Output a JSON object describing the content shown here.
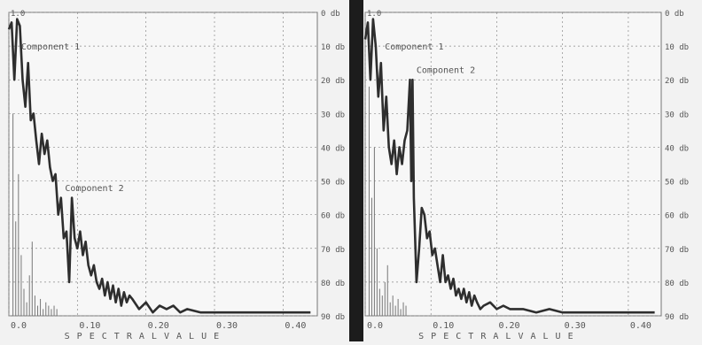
{
  "chart_data": [
    {
      "type": "line",
      "corner_label": "1.0",
      "xlabel": "S P E C T R A L   V A L U E",
      "x_ticks": [
        0.0,
        0.1,
        0.2,
        0.3,
        0.4
      ],
      "x_tick_labels": [
        "0.0",
        "0.10",
        "0.20",
        "0.30",
        "0.40"
      ],
      "xlim": [
        0,
        0.45
      ],
      "ylim_db": [
        0,
        90
      ],
      "y_tick_labels": [
        "0 db",
        "10 db",
        "20 db",
        "30 db",
        "40 db",
        "50 db",
        "60 db",
        "70 db",
        "80 db",
        "90 db"
      ],
      "grid": true,
      "annotations": [
        {
          "text": "Component 1",
          "x": 0.018,
          "y": 11
        },
        {
          "text": "Component 2",
          "x": 0.082,
          "y": 53
        }
      ],
      "series": [
        {
          "x": [
            0.0,
            0.004,
            0.008,
            0.012,
            0.016,
            0.02,
            0.024,
            0.028,
            0.032,
            0.036,
            0.04,
            0.044,
            0.048,
            0.052,
            0.056,
            0.06,
            0.064,
            0.068,
            0.072,
            0.076,
            0.08,
            0.084,
            0.088,
            0.092,
            0.096,
            0.1,
            0.104,
            0.108,
            0.112,
            0.116,
            0.12,
            0.124,
            0.128,
            0.132,
            0.136,
            0.14,
            0.144,
            0.148,
            0.152,
            0.156,
            0.16,
            0.164,
            0.168,
            0.172,
            0.176,
            0.18,
            0.19,
            0.2,
            0.21,
            0.22,
            0.23,
            0.24,
            0.25,
            0.26,
            0.28,
            0.3,
            0.33,
            0.36,
            0.4,
            0.44
          ],
          "y": [
            5,
            3,
            20,
            2,
            4,
            20,
            28,
            15,
            32,
            30,
            38,
            45,
            36,
            42,
            38,
            46,
            50,
            48,
            60,
            55,
            67,
            65,
            80,
            55,
            67,
            70,
            65,
            72,
            68,
            75,
            78,
            75,
            80,
            82,
            79,
            84,
            80,
            85,
            81,
            86,
            82,
            87,
            83,
            86,
            84,
            85,
            88,
            86,
            89,
            87,
            88,
            87,
            89,
            88,
            89,
            89,
            89,
            89,
            89,
            89
          ]
        }
      ],
      "bars": {
        "x": [
          0.006,
          0.01,
          0.014,
          0.018,
          0.022,
          0.026,
          0.03,
          0.034,
          0.038,
          0.042,
          0.046,
          0.05,
          0.054,
          0.058,
          0.062,
          0.066,
          0.07
        ],
        "top": [
          30,
          62,
          48,
          72,
          82,
          86,
          78,
          68,
          84,
          87,
          85,
          88,
          86,
          87,
          88,
          87,
          88
        ]
      }
    },
    {
      "type": "line",
      "corner_label": "1.0",
      "xlabel": "S P E C T R A L   V A L U E",
      "x_ticks": [
        0.0,
        0.1,
        0.2,
        0.3,
        0.4
      ],
      "x_tick_labels": [
        "0.0",
        "0.10",
        "0.20",
        "0.30",
        "0.40"
      ],
      "xlim": [
        0,
        0.45
      ],
      "ylim_db": [
        0,
        90
      ],
      "y_tick_labels": [
        "0 db",
        "10 db",
        "20 db",
        "30 db",
        "40 db",
        "50 db",
        "60 db",
        "70 db",
        "80 db",
        "90 db"
      ],
      "grid": true,
      "annotations": [
        {
          "text": "Component 1",
          "x": 0.03,
          "y": 11
        },
        {
          "text": "Component 2",
          "x": 0.078,
          "y": 18
        }
      ],
      "series": [
        {
          "x": [
            0.0,
            0.004,
            0.008,
            0.012,
            0.016,
            0.02,
            0.024,
            0.028,
            0.032,
            0.036,
            0.04,
            0.044,
            0.048,
            0.052,
            0.056,
            0.06,
            0.064,
            0.068,
            0.07,
            0.072,
            0.074,
            0.078,
            0.082,
            0.086,
            0.09,
            0.094,
            0.098,
            0.102,
            0.106,
            0.11,
            0.114,
            0.118,
            0.122,
            0.126,
            0.13,
            0.134,
            0.138,
            0.142,
            0.146,
            0.15,
            0.154,
            0.158,
            0.162,
            0.166,
            0.17,
            0.175,
            0.18,
            0.19,
            0.2,
            0.21,
            0.22,
            0.24,
            0.26,
            0.28,
            0.3,
            0.34,
            0.38,
            0.44
          ],
          "y": [
            8,
            3,
            20,
            2,
            10,
            25,
            15,
            35,
            25,
            40,
            45,
            38,
            48,
            40,
            45,
            38,
            35,
            20,
            50,
            20,
            55,
            80,
            70,
            58,
            60,
            67,
            65,
            72,
            70,
            75,
            80,
            72,
            80,
            78,
            82,
            79,
            84,
            82,
            85,
            82,
            86,
            83,
            87,
            84,
            86,
            88,
            87,
            86,
            88,
            87,
            88,
            88,
            89,
            88,
            89,
            89,
            89,
            89
          ]
        }
      ],
      "bars": {
        "x": [
          0.006,
          0.01,
          0.014,
          0.018,
          0.022,
          0.026,
          0.03,
          0.034,
          0.038,
          0.042,
          0.046,
          0.05,
          0.054,
          0.058,
          0.062
        ],
        "top": [
          22,
          55,
          40,
          70,
          82,
          84,
          80,
          75,
          86,
          84,
          87,
          85,
          88,
          86,
          87
        ]
      }
    }
  ]
}
